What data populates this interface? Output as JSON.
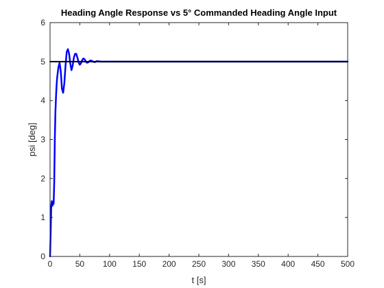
{
  "chart_data": {
    "type": "line",
    "title": "Heading Angle Response vs 5° Commanded Heading Angle Input",
    "xlabel": "t [s]",
    "ylabel": "psi [deg]",
    "xlim": [
      0,
      500
    ],
    "ylim": [
      0,
      6
    ],
    "xticks": [
      "0",
      "50",
      "100",
      "150",
      "200",
      "250",
      "300",
      "350",
      "400",
      "450",
      "500"
    ],
    "yticks": [
      "0",
      "1",
      "2",
      "3",
      "4",
      "5",
      "6"
    ],
    "grid": false,
    "series": [
      {
        "color": "#0000ff",
        "x": [
          0,
          1,
          2,
          3,
          4,
          5,
          6,
          7,
          8,
          9,
          10,
          11,
          12,
          14,
          16,
          18,
          20,
          22,
          24,
          26,
          28,
          30,
          32,
          34,
          36,
          38,
          40,
          42,
          44,
          46,
          48,
          50,
          52,
          54,
          56,
          58,
          60,
          62,
          64,
          66,
          68,
          70,
          72,
          74,
          76,
          78,
          80,
          85,
          90,
          95,
          100,
          110,
          120,
          140,
          160,
          200,
          250,
          300,
          350,
          400,
          450,
          500
        ],
        "y": [
          0,
          0.6,
          1.3,
          1.42,
          1.3,
          1.38,
          1.35,
          1.9,
          3.0,
          3.7,
          4.1,
          4.4,
          4.6,
          4.85,
          4.97,
          4.75,
          4.3,
          4.2,
          4.45,
          4.9,
          5.25,
          5.32,
          5.2,
          4.95,
          4.78,
          4.9,
          5.1,
          5.2,
          5.2,
          5.1,
          4.98,
          4.92,
          4.96,
          5.04,
          5.08,
          5.06,
          5.0,
          4.97,
          4.98,
          5.01,
          5.03,
          5.02,
          5.0,
          4.99,
          4.99,
          5.01,
          5.01,
          5.0,
          5.0,
          5.0,
          5.0,
          5.0,
          5.0,
          5.0,
          5.0,
          5.0,
          5.0,
          5.0,
          5.0,
          5.0,
          5.0,
          5.0
        ]
      },
      {
        "color": "#000000",
        "x": [
          0,
          500
        ],
        "y": [
          5,
          5
        ]
      }
    ]
  }
}
